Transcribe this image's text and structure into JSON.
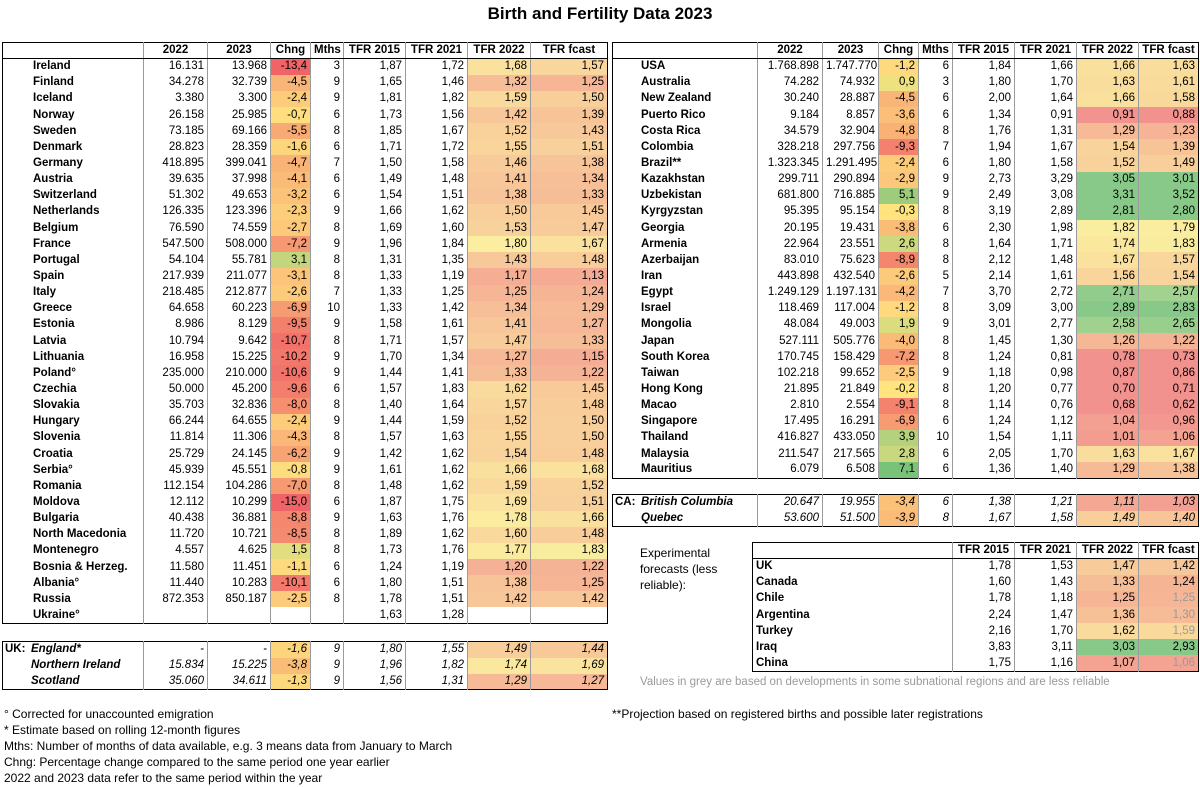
{
  "title": "Birth and Fertility Data 2023",
  "left_table": {
    "columns": [
      "2022",
      "2023",
      "Chng",
      "Mths",
      "TFR 2015",
      "TFR 2021",
      "TFR 2022",
      "TFR fcast"
    ],
    "rows": [
      [
        "Ireland",
        "16.131",
        "13.968",
        "-13,4",
        "3",
        "1,87",
        "1,72",
        "1,68",
        "1,57"
      ],
      [
        "Finland",
        "34.278",
        "32.739",
        "-4,5",
        "9",
        "1,65",
        "1,46",
        "1,32",
        "1,25"
      ],
      [
        "Iceland",
        "3.380",
        "3.300",
        "-2,4",
        "9",
        "1,81",
        "1,82",
        "1,59",
        "1,50"
      ],
      [
        "Norway",
        "26.158",
        "25.985",
        "-0,7",
        "6",
        "1,73",
        "1,56",
        "1,42",
        "1,39"
      ],
      [
        "Sweden",
        "73.185",
        "69.166",
        "-5,5",
        "8",
        "1,85",
        "1,67",
        "1,52",
        "1,43"
      ],
      [
        "Denmark",
        "28.823",
        "28.359",
        "-1,6",
        "6",
        "1,71",
        "1,72",
        "1,55",
        "1,51"
      ],
      [
        "Germany",
        "418.895",
        "399.041",
        "-4,7",
        "7",
        "1,50",
        "1,58",
        "1,46",
        "1,38"
      ],
      [
        "Austria",
        "39.635",
        "37.998",
        "-4,1",
        "6",
        "1,49",
        "1,48",
        "1,41",
        "1,34"
      ],
      [
        "Switzerland",
        "51.302",
        "49.653",
        "-3,2",
        "6",
        "1,54",
        "1,51",
        "1,38",
        "1,33"
      ],
      [
        "Netherlands",
        "126.335",
        "123.396",
        "-2,3",
        "9",
        "1,66",
        "1,62",
        "1,50",
        "1,45"
      ],
      [
        "Belgium",
        "76.590",
        "74.559",
        "-2,7",
        "8",
        "1,69",
        "1,60",
        "1,53",
        "1,47"
      ],
      [
        "France",
        "547.500",
        "508.000",
        "-7,2",
        "9",
        "1,96",
        "1,84",
        "1,80",
        "1,67"
      ],
      [
        "Portugal",
        "54.104",
        "55.781",
        "3,1",
        "8",
        "1,31",
        "1,35",
        "1,43",
        "1,48"
      ],
      [
        "Spain",
        "217.939",
        "211.077",
        "-3,1",
        "8",
        "1,33",
        "1,19",
        "1,17",
        "1,13"
      ],
      [
        "Italy",
        "218.485",
        "212.877",
        "-2,6",
        "7",
        "1,33",
        "1,25",
        "1,25",
        "1,24"
      ],
      [
        "Greece",
        "64.658",
        "60.223",
        "-6,9",
        "10",
        "1,33",
        "1,42",
        "1,34",
        "1,29"
      ],
      [
        "Estonia",
        "8.986",
        "8.129",
        "-9,5",
        "9",
        "1,58",
        "1,61",
        "1,41",
        "1,27"
      ],
      [
        "Latvia",
        "10.794",
        "9.642",
        "-10,7",
        "8",
        "1,71",
        "1,57",
        "1,47",
        "1,33"
      ],
      [
        "Lithuania",
        "16.958",
        "15.225",
        "-10,2",
        "9",
        "1,70",
        "1,34",
        "1,27",
        "1,15"
      ],
      [
        "Poland°",
        "235.000",
        "210.000",
        "-10,6",
        "9",
        "1,44",
        "1,41",
        "1,33",
        "1,22"
      ],
      [
        "Czechia",
        "50.000",
        "45.200",
        "-9,6",
        "6",
        "1,57",
        "1,83",
        "1,62",
        "1,45"
      ],
      [
        "Slovakia",
        "35.703",
        "32.836",
        "-8,0",
        "8",
        "1,40",
        "1,64",
        "1,57",
        "1,48"
      ],
      [
        "Hungary",
        "66.244",
        "64.655",
        "-2,4",
        "9",
        "1,44",
        "1,59",
        "1,52",
        "1,50"
      ],
      [
        "Slovenia",
        "11.814",
        "11.306",
        "-4,3",
        "8",
        "1,57",
        "1,63",
        "1,55",
        "1,50"
      ],
      [
        "Croatia",
        "25.729",
        "24.145",
        "-6,2",
        "9",
        "1,42",
        "1,62",
        "1,54",
        "1,48"
      ],
      [
        "Serbia°",
        "45.939",
        "45.551",
        "-0,8",
        "9",
        "1,61",
        "1,62",
        "1,66",
        "1,68"
      ],
      [
        "Romania",
        "112.154",
        "104.286",
        "-7,0",
        "8",
        "1,48",
        "1,62",
        "1,59",
        "1,52"
      ],
      [
        "Moldova",
        "12.112",
        "10.299",
        "-15,0",
        "6",
        "1,87",
        "1,75",
        "1,69",
        "1,51"
      ],
      [
        "Bulgaria",
        "40.438",
        "36.881",
        "-8,8",
        "9",
        "1,63",
        "1,76",
        "1,78",
        "1,66"
      ],
      [
        "North Macedonia",
        "11.720",
        "10.721",
        "-8,5",
        "8",
        "1,89",
        "1,62",
        "1,60",
        "1,48"
      ],
      [
        "Montenegro",
        "4.557",
        "4.625",
        "1,5",
        "8",
        "1,73",
        "1,76",
        "1,77",
        "1,83"
      ],
      [
        "Bosnia & Herzeg.",
        "11.580",
        "11.451",
        "-1,1",
        "6",
        "1,24",
        "1,19",
        "1,20",
        "1,22"
      ],
      [
        "Albania°",
        "11.440",
        "10.283",
        "-10,1",
        "6",
        "1,80",
        "1,51",
        "1,38",
        "1,25"
      ],
      [
        "Russia",
        "872.353",
        "850.187",
        "-2,5",
        "8",
        "1,78",
        "1,51",
        "1,42",
        "1,42"
      ],
      [
        "Ukraine°",
        null,
        null,
        null,
        null,
        "1,63",
        "1,28",
        null,
        null
      ]
    ],
    "uk_label": "UK:",
    "uk_rows": [
      [
        "England*",
        "-",
        "-",
        "-1,6",
        "9",
        "1,80",
        "1,55",
        "1,49",
        "1,44"
      ],
      [
        "Northern Ireland",
        "15.834",
        "15.225",
        "-3,8",
        "9",
        "1,96",
        "1,82",
        "1,74",
        "1,69"
      ],
      [
        "Scotland",
        "35.060",
        "34.611",
        "-1,3",
        "9",
        "1,56",
        "1,31",
        "1,29",
        "1,27"
      ]
    ]
  },
  "right_table": {
    "columns": [
      "2022",
      "2023",
      "Chng",
      "Mths",
      "TFR 2015",
      "TFR 2021",
      "TFR 2022",
      "TFR fcast"
    ],
    "rows": [
      [
        "USA",
        "1.768.898",
        "1.747.770",
        "-1,2",
        "6",
        "1,84",
        "1,66",
        "1,66",
        "1,63"
      ],
      [
        "Australia",
        "74.282",
        "74.932",
        "0,9",
        "3",
        "1,80",
        "1,70",
        "1,63",
        "1,61"
      ],
      [
        "New Zealand",
        "30.240",
        "28.887",
        "-4,5",
        "6",
        "2,00",
        "1,64",
        "1,66",
        "1,58"
      ],
      [
        "Puerto Rico",
        "9.184",
        "8.857",
        "-3,6",
        "6",
        "1,34",
        "0,91",
        "0,91",
        "0,88"
      ],
      [
        "Costa Rica",
        "34.579",
        "32.904",
        "-4,8",
        "8",
        "1,76",
        "1,31",
        "1,29",
        "1,23"
      ],
      [
        "Colombia",
        "328.218",
        "297.756",
        "-9,3",
        "7",
        "1,94",
        "1,67",
        "1,54",
        "1,39"
      ],
      [
        "Brazil**",
        "1.323.345",
        "1.291.495",
        "-2,4",
        "6",
        "1,80",
        "1,58",
        "1,52",
        "1,49"
      ],
      [
        "Kazakhstan",
        "299.711",
        "290.894",
        "-2,9",
        "9",
        "2,73",
        "3,29",
        "3,05",
        "3,01"
      ],
      [
        "Uzbekistan",
        "681.800",
        "716.885",
        "5,1",
        "9",
        "2,49",
        "3,08",
        "3,31",
        "3,52"
      ],
      [
        "Kyrgyzstan",
        "95.395",
        "95.154",
        "-0,3",
        "8",
        "3,19",
        "2,89",
        "2,81",
        "2,80"
      ],
      [
        "Georgia",
        "20.195",
        "19.431",
        "-3,8",
        "6",
        "2,30",
        "1,98",
        "1,82",
        "1,79"
      ],
      [
        "Armenia",
        "22.964",
        "23.551",
        "2,6",
        "8",
        "1,64",
        "1,71",
        "1,74",
        "1,83"
      ],
      [
        "Azerbaijan",
        "83.010",
        "75.623",
        "-8,9",
        "8",
        "2,12",
        "1,48",
        "1,67",
        "1,57"
      ],
      [
        "Iran",
        "443.898",
        "432.540",
        "-2,6",
        "5",
        "2,14",
        "1,61",
        "1,56",
        "1,54"
      ],
      [
        "Egypt",
        "1.249.129",
        "1.197.131",
        "-4,2",
        "7",
        "3,70",
        "2,72",
        "2,71",
        "2,57"
      ],
      [
        "Israel",
        "118.469",
        "117.004",
        "-1,2",
        "8",
        "3,09",
        "3,00",
        "2,89",
        "2,83"
      ],
      [
        "Mongolia",
        "48.084",
        "49.003",
        "1,9",
        "9",
        "3,01",
        "2,77",
        "2,58",
        "2,65"
      ],
      [
        "Japan",
        "527.111",
        "505.776",
        "-4,0",
        "8",
        "1,45",
        "1,30",
        "1,26",
        "1,22"
      ],
      [
        "South Korea",
        "170.745",
        "158.429",
        "-7,2",
        "8",
        "1,24",
        "0,81",
        "0,78",
        "0,73"
      ],
      [
        "Taiwan",
        "102.218",
        "99.652",
        "-2,5",
        "9",
        "1,18",
        "0,98",
        "0,87",
        "0,86"
      ],
      [
        "Hong Kong",
        "21.895",
        "21.849",
        "-0,2",
        "8",
        "1,20",
        "0,77",
        "0,70",
        "0,71"
      ],
      [
        "Macao",
        "2.810",
        "2.554",
        "-9,1",
        "8",
        "1,14",
        "0,76",
        "0,68",
        "0,62"
      ],
      [
        "Singapore",
        "17.495",
        "16.291",
        "-6,9",
        "6",
        "1,24",
        "1,12",
        "1,04",
        "0,96"
      ],
      [
        "Thailand",
        "416.827",
        "433.050",
        "3,9",
        "10",
        "1,54",
        "1,11",
        "1,01",
        "1,06"
      ],
      [
        "Malaysia",
        "211.547",
        "217.565",
        "2,8",
        "6",
        "2,05",
        "1,70",
        "1,63",
        "1,67"
      ],
      [
        "Mauritius",
        "6.079",
        "6.508",
        "7,1",
        "6",
        "1,36",
        "1,40",
        "1,29",
        "1,38"
      ]
    ],
    "ca_label": "CA:",
    "ca_rows": [
      [
        "British Columbia",
        "20.647",
        "19.955",
        "-3,4",
        "6",
        "1,38",
        "1,21",
        "1,11",
        "1,03"
      ],
      [
        "Quebec",
        "53.600",
        "51.500",
        "-3,9",
        "8",
        "1,67",
        "1,58",
        "1,49",
        "1,40"
      ]
    ]
  },
  "experimental": {
    "label": "Experimental forecasts (less reliable):",
    "columns": [
      "TFR 2015",
      "TFR 2021",
      "TFR 2022",
      "TFR fcast"
    ],
    "rows": [
      [
        "UK",
        "1,78",
        "1,53",
        "1,47",
        "1,42"
      ],
      [
        "Canada",
        "1,60",
        "1,43",
        "1,33",
        "1,24"
      ],
      [
        "Chile",
        "1,78",
        "1,18",
        "1,25",
        "1,25"
      ],
      [
        "Argentina",
        "2,24",
        "1,47",
        "1,36",
        "1,30"
      ],
      [
        "Turkey",
        "2,16",
        "1,70",
        "1,62",
        "1,59"
      ],
      [
        "Iraq",
        "3,83",
        "3,11",
        "3,03",
        "2,93"
      ],
      [
        "China",
        "1,75",
        "1,16",
        "1,07",
        "1,06"
      ]
    ],
    "grey_fcast": [
      false,
      false,
      true,
      true,
      true,
      false,
      true
    ],
    "note": "Values in grey are based on developments in some subnational regions and are less reliable"
  },
  "footnotes_left": [
    "° Corrected for unaccounted emigration",
    "* Estimate based on rolling 12-month figures",
    "Mths: Number of months of data available, e.g. 3 means data from January to March",
    "Chng: Percentage change compared to the same period one year earlier",
    "2022 and 2023 data refer to the same period within the year"
  ],
  "footnote_right": "**Projection based on registered births and possible later registrations"
}
